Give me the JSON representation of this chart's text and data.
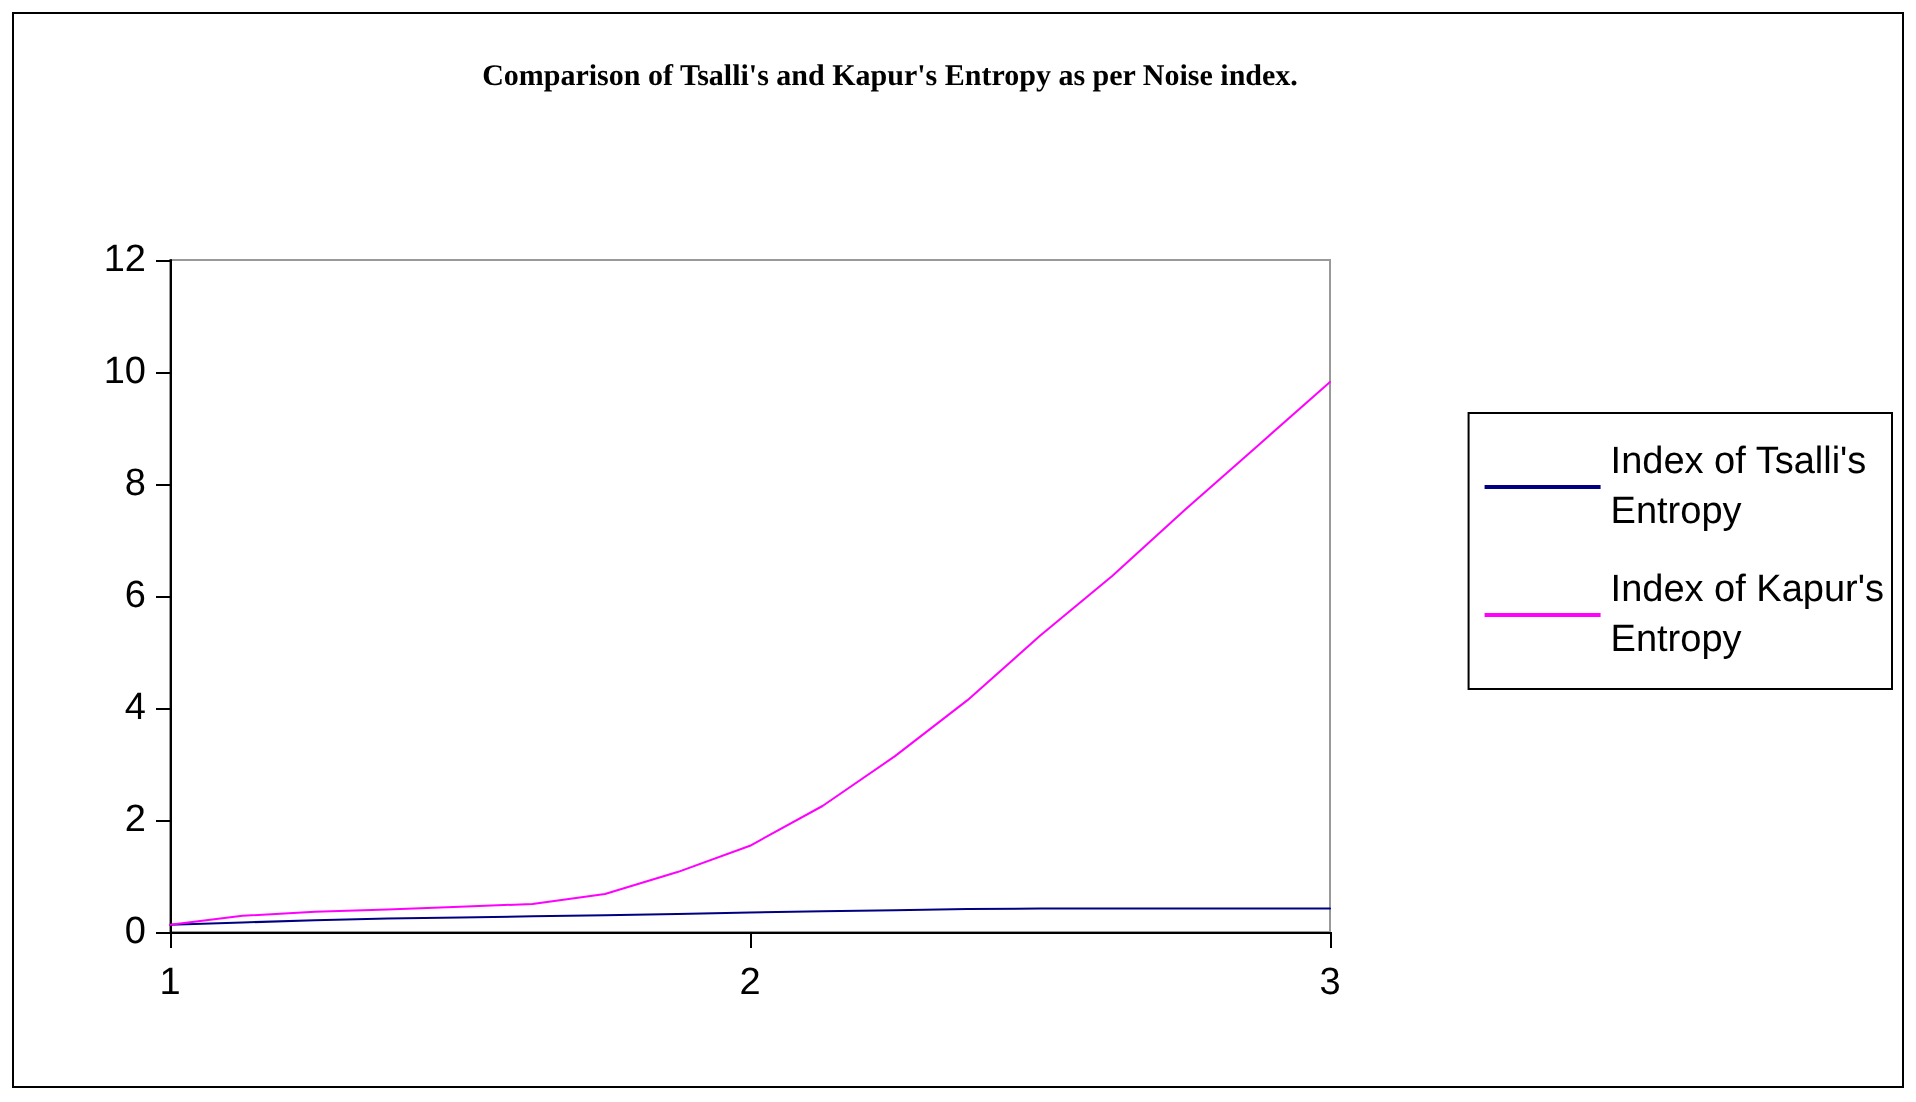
{
  "chart_data": {
    "type": "line",
    "title": "Comparison of Tsalli's and Kapur's Entropy as per Noise index.",
    "x": [
      1,
      1.125,
      1.25,
      1.375,
      1.5,
      1.625,
      1.75,
      1.875,
      2,
      2.125,
      2.25,
      2.375,
      2.5,
      2.625,
      2.75,
      2.875,
      3
    ],
    "series": [
      {
        "name": "Index of Tsalli's Entropy",
        "color": "#000080",
        "values": [
          0.13,
          0.17,
          0.21,
          0.24,
          0.26,
          0.28,
          0.3,
          0.32,
          0.35,
          0.37,
          0.39,
          0.41,
          0.42,
          0.42,
          0.42,
          0.42,
          0.42
        ]
      },
      {
        "name": "Index of Kapur's Entropy",
        "color": "#ff00ff",
        "values": [
          0.13,
          0.29,
          0.36,
          0.4,
          0.45,
          0.5,
          0.68,
          1.07,
          1.54,
          2.25,
          3.14,
          4.14,
          5.29,
          6.36,
          7.54,
          8.68,
          9.82
        ]
      }
    ],
    "xlim": [
      1,
      3
    ],
    "xticks": [
      1,
      2,
      3
    ],
    "ylim": [
      0,
      12
    ],
    "yticks": [
      0,
      2,
      4,
      6,
      8,
      10,
      12
    ],
    "grid": false,
    "legend": "right",
    "marker": "none",
    "line_style": "solid"
  }
}
